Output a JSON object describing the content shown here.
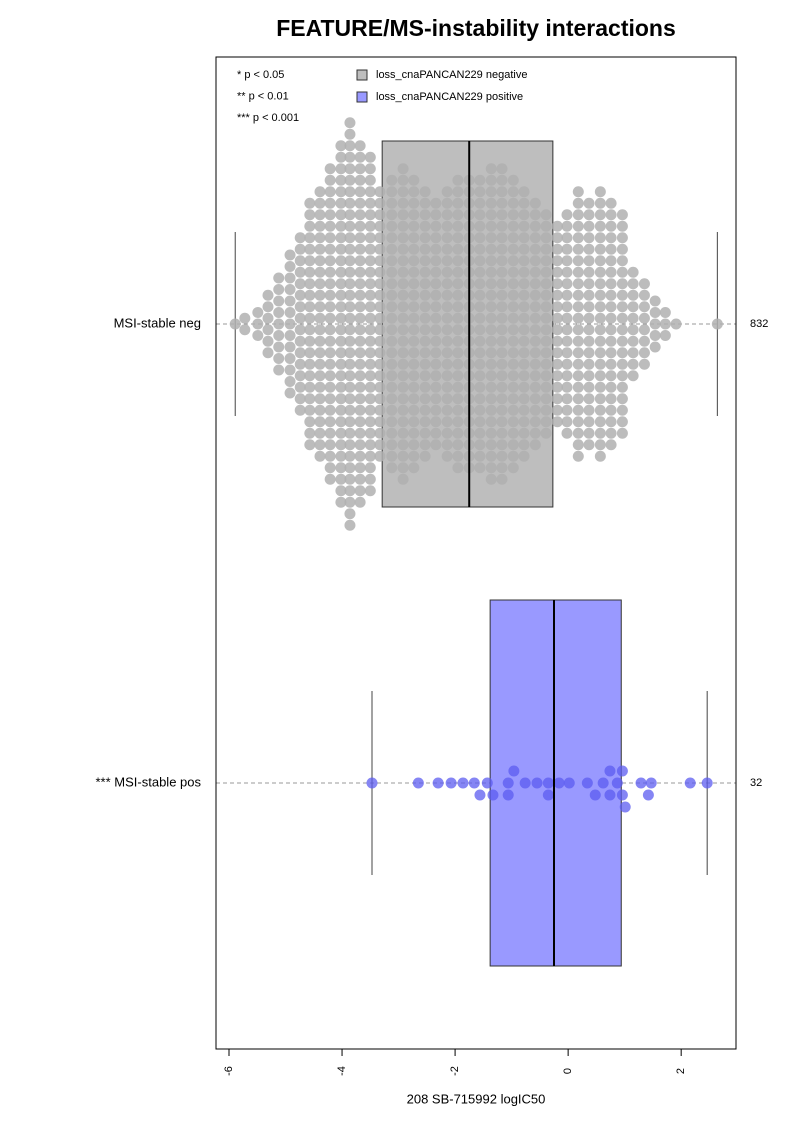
{
  "chart_data": {
    "type": "boxplot",
    "title": "FEATURE/MS-instability interactions",
    "xlabel": "208 SB-715992 logIC50",
    "xlim": [
      -6.23,
      2.97
    ],
    "xticks": [
      -6,
      -4,
      -2,
      0,
      2
    ],
    "significance_legend": [
      "* p < 0.05",
      "** p < 0.01",
      "*** p < 0.001"
    ],
    "series": [
      {
        "name": "loss_cnaPANCAN229 negative",
        "label": "MSI-stable neg",
        "n": 832,
        "color": "#bebebe",
        "point_color": "#b0b0b0",
        "whisker_low": -5.89,
        "q1": -3.29,
        "median": -1.75,
        "q3": -0.27,
        "whisker_high": 2.64,
        "swarm_x": [
          -5.89,
          -5.72,
          -5.49,
          -5.31,
          -5.12,
          -4.92,
          -4.74,
          -4.57,
          -4.39,
          -4.21,
          -4.02,
          -3.86,
          -3.68,
          -3.5,
          -3.33,
          -3.12,
          -2.92,
          -2.73,
          -2.53,
          -2.34,
          -2.14,
          -1.95,
          -1.75,
          -1.56,
          -1.36,
          -1.17,
          -0.97,
          -0.78,
          -0.58,
          -0.39,
          -0.19,
          -0.02,
          0.18,
          0.37,
          0.57,
          0.76,
          0.96,
          1.15,
          1.35,
          1.54,
          1.72,
          1.91,
          2.64
        ],
        "swarm_counts": [
          1,
          2,
          3,
          6,
          9,
          13,
          16,
          22,
          24,
          28,
          32,
          36,
          32,
          30,
          24,
          26,
          28,
          26,
          24,
          22,
          24,
          26,
          26,
          26,
          28,
          28,
          26,
          24,
          22,
          20,
          18,
          20,
          24,
          22,
          24,
          22,
          20,
          10,
          8,
          5,
          3,
          1,
          1
        ]
      },
      {
        "name": "loss_cnaPANCAN229 positive",
        "label": "*** MSI-stable pos",
        "n": 32,
        "color": "#9999ff",
        "point_color": "#5c5cf0",
        "whisker_low": -3.47,
        "q1": -1.38,
        "median": -0.25,
        "q3": 0.94,
        "whisker_high": 2.46,
        "points": [
          -3.47,
          -2.65,
          -2.3,
          -2.07,
          -1.86,
          -1.66,
          -1.56,
          -1.43,
          -1.33,
          -1.06,
          -1.06,
          -0.96,
          -0.76,
          -0.55,
          -0.35,
          -0.35,
          -0.16,
          0.02,
          0.34,
          0.48,
          0.62,
          0.74,
          0.74,
          0.87,
          0.96,
          0.96,
          1.01,
          1.29,
          1.42,
          1.47,
          2.16,
          2.46
        ]
      }
    ]
  }
}
